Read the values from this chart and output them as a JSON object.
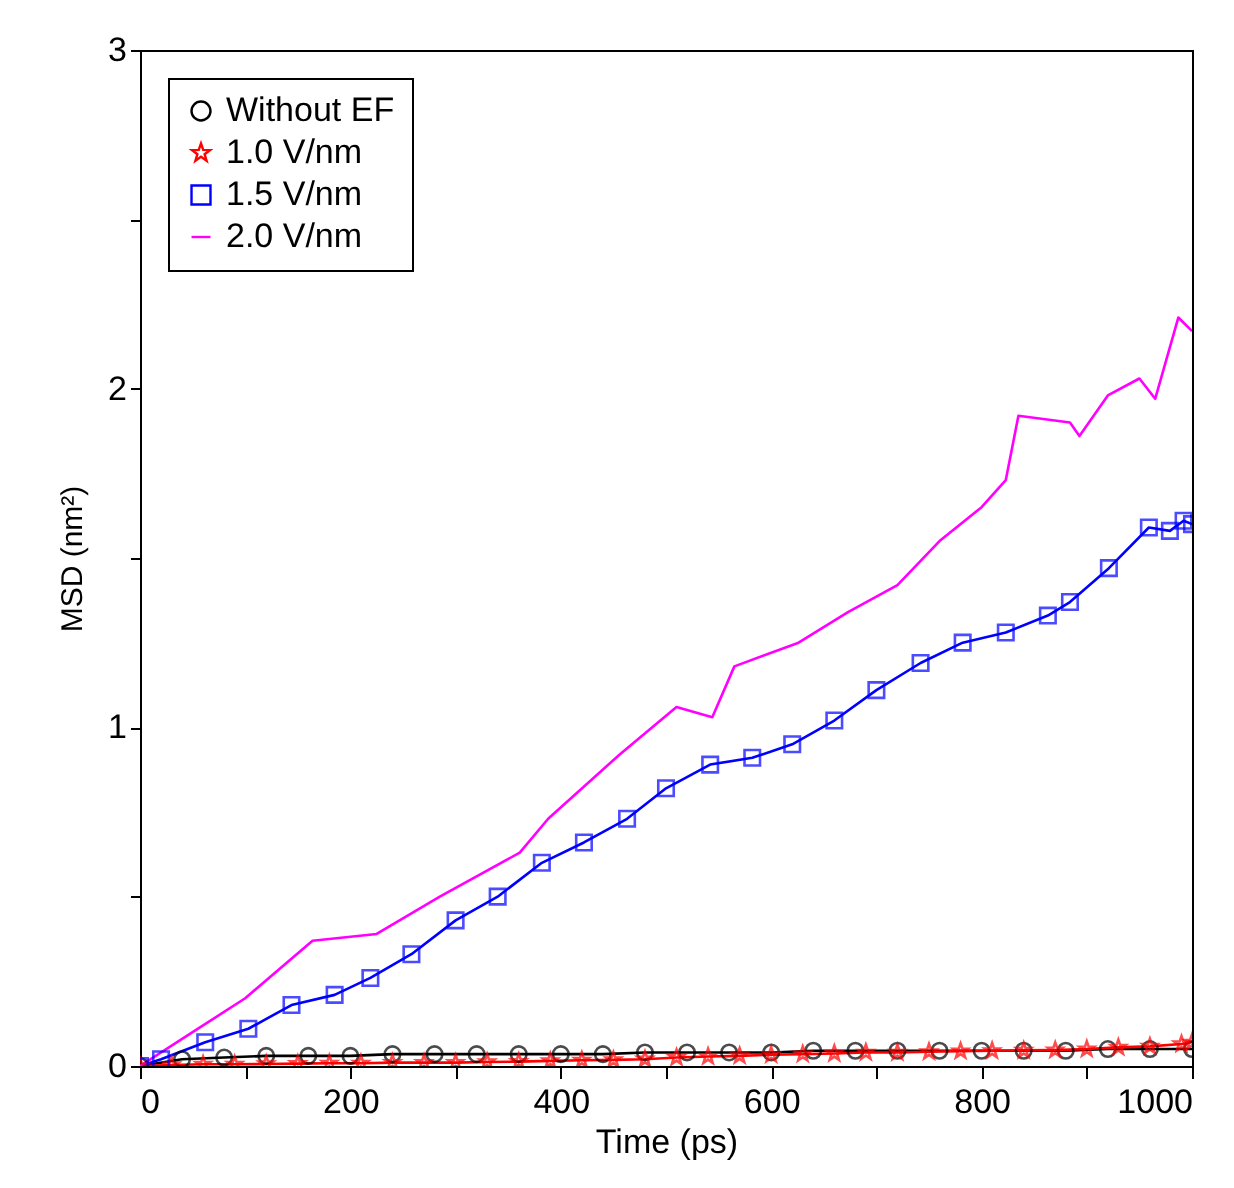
{
  "chart_data": {
    "type": "line",
    "xlabel": "Time (ps)",
    "ylabel": "MSD (nm²)",
    "xlim": [
      0,
      1000
    ],
    "ylim": [
      0,
      3
    ],
    "xticks": [
      0,
      {
        "value": 100,
        "label": null
      },
      200,
      {
        "value": 300,
        "label": null
      },
      400,
      {
        "value": 500,
        "label": null
      },
      600,
      {
        "value": 700,
        "label": null
      },
      800,
      {
        "value": 900,
        "label": null
      },
      1000
    ],
    "yticks": [
      0,
      {
        "value": 0.5,
        "label": null
      },
      1,
      {
        "value": 1.5,
        "label": null
      },
      2,
      {
        "value": 2.5,
        "label": null
      },
      3
    ],
    "grid": false,
    "legend": "top left",
    "line_style": "solid",
    "series": [
      {
        "name": "Without EF",
        "color": "#000000",
        "marker": "circle",
        "x": [
          0,
          40,
          80,
          120,
          160,
          200,
          240,
          280,
          320,
          360,
          400,
          440,
          480,
          520,
          560,
          600,
          640,
          680,
          720,
          760,
          800,
          840,
          880,
          920,
          960,
          1000
        ],
        "values": [
          0,
          0.02,
          0.025,
          0.03,
          0.03,
          0.03,
          0.035,
          0.035,
          0.035,
          0.035,
          0.035,
          0.035,
          0.04,
          0.04,
          0.04,
          0.04,
          0.045,
          0.045,
          0.045,
          0.045,
          0.045,
          0.045,
          0.045,
          0.05,
          0.05,
          0.05
        ]
      },
      {
        "name": "1.0 V/nm",
        "color": "#ff0000",
        "marker": "star",
        "x": [
          0,
          30,
          60,
          90,
          120,
          150,
          180,
          210,
          240,
          270,
          300,
          330,
          360,
          390,
          420,
          450,
          480,
          510,
          540,
          570,
          600,
          630,
          660,
          690,
          720,
          750,
          780,
          810,
          840,
          870,
          900,
          930,
          960,
          990,
          1000
        ],
        "values": [
          0,
          0.003,
          0.005,
          0.005,
          0.006,
          0.007,
          0.008,
          0.008,
          0.01,
          0.01,
          0.01,
          0.012,
          0.013,
          0.015,
          0.017,
          0.018,
          0.02,
          0.025,
          0.028,
          0.03,
          0.033,
          0.035,
          0.037,
          0.04,
          0.04,
          0.042,
          0.044,
          0.045,
          0.046,
          0.047,
          0.05,
          0.055,
          0.058,
          0.065,
          0.07
        ]
      },
      {
        "name": "1.5 V/nm",
        "color": "#0000ff",
        "marker": "square",
        "x": [
          0,
          20,
          62,
          103,
          144,
          185,
          219,
          258,
          300,
          340,
          382,
          422,
          463,
          500,
          542,
          582,
          620,
          660,
          700,
          742,
          782,
          823,
          863,
          884,
          921,
          959,
          979,
          992,
          1000
        ],
        "values": [
          0,
          0.02,
          0.07,
          0.11,
          0.18,
          0.21,
          0.26,
          0.33,
          0.43,
          0.5,
          0.6,
          0.66,
          0.73,
          0.82,
          0.89,
          0.91,
          0.95,
          1.02,
          1.11,
          1.19,
          1.25,
          1.28,
          1.33,
          1.37,
          1.47,
          1.59,
          1.58,
          1.61,
          1.6
        ]
      },
      {
        "name": "2.0 V/nm",
        "color": "#ff00ff",
        "marker": "none",
        "x": [
          0,
          50,
          100,
          164,
          225,
          285,
          361,
          388,
          456,
          510,
          544,
          565,
          626,
          673,
          720,
          760,
          800,
          823,
          835,
          884,
          893,
          920,
          950,
          965,
          987,
          1000
        ],
        "values": [
          0,
          0.1,
          0.2,
          0.37,
          0.39,
          0.5,
          0.63,
          0.73,
          0.92,
          1.06,
          1.03,
          1.18,
          1.25,
          1.34,
          1.42,
          1.55,
          1.65,
          1.73,
          1.92,
          1.9,
          1.86,
          1.98,
          2.03,
          1.97,
          2.21,
          2.17
        ]
      }
    ]
  }
}
